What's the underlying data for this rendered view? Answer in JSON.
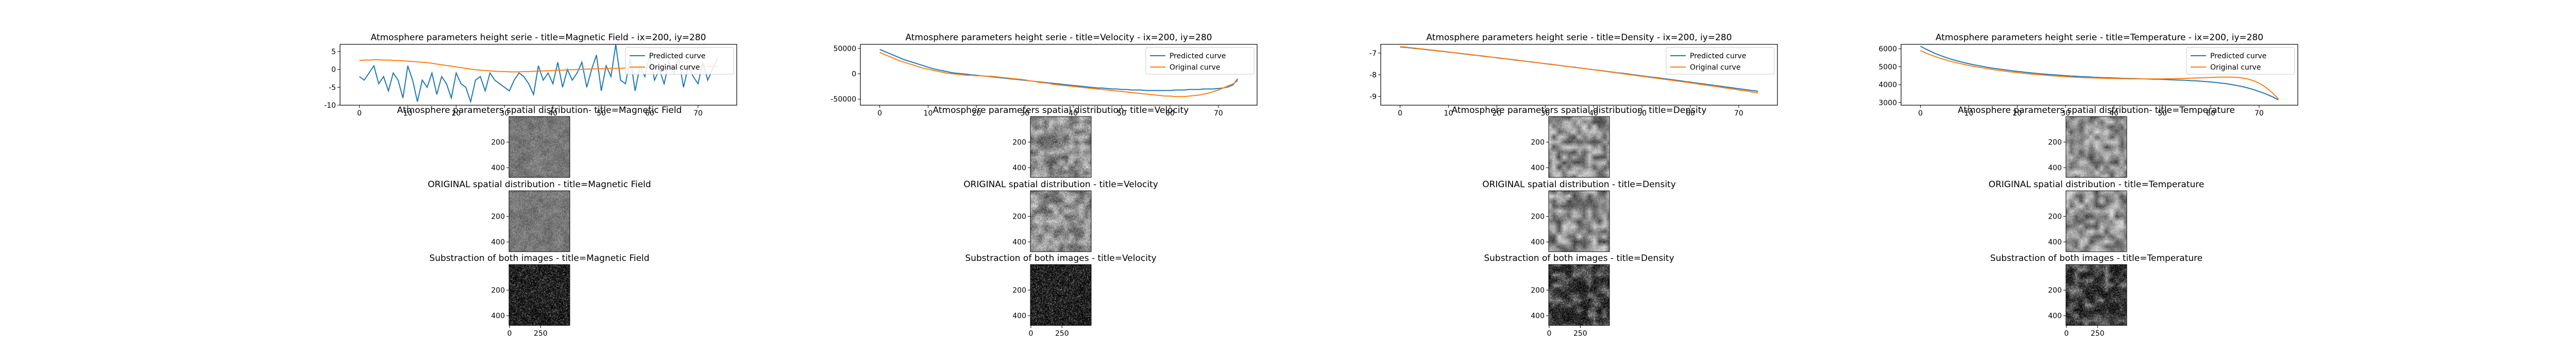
{
  "figure": {
    "background": "#ffffff"
  },
  "colors": {
    "predicted": "#1f77b4",
    "original": "#ff7f0e",
    "axis": "#000000"
  },
  "legend": {
    "predicted": "Predicted curve",
    "original": "Original curve",
    "placement": "top-right"
  },
  "chart_data": [
    {
      "type": "line",
      "title": "Atmosphere parameters height serie - title=Magnetic Field - ix=200, iy=280",
      "xlim": [
        -4,
        78
      ],
      "ylim": [
        -10,
        7
      ],
      "xticks": [
        0,
        10,
        20,
        30,
        40,
        50,
        60,
        70
      ],
      "yticks": [
        -10,
        -5,
        0,
        5
      ],
      "x_start": 0,
      "series": [
        {
          "name": "Predicted curve",
          "color": "#1f77b4",
          "values": [
            -2,
            -3,
            -1,
            1,
            -4,
            -2,
            -6,
            -1,
            -3,
            -8,
            1,
            -3,
            -9,
            -3,
            -5,
            -1,
            -7,
            -2,
            -4,
            -8,
            -1,
            -4,
            -5,
            -9,
            -3,
            -2,
            -6,
            -1,
            -3,
            -4,
            -5,
            -6,
            -3,
            -1,
            -2,
            -4,
            -7,
            1,
            -3,
            -1,
            -4,
            2,
            -5,
            0,
            -3,
            -1,
            2,
            -5,
            0,
            4,
            -6,
            1,
            -2,
            7,
            -3,
            -4,
            3,
            -6,
            1,
            -2,
            4,
            -3,
            0,
            -4,
            2,
            -1,
            3,
            -5,
            1,
            -2,
            -4,
            2,
            -3,
            0,
            3
          ]
        },
        {
          "name": "Original curve",
          "color": "#ff7f0e",
          "values": [
            2.5,
            2.6,
            2.6,
            2.7,
            2.7,
            2.6,
            2.6,
            2.5,
            2.5,
            2.4,
            2.3,
            2.2,
            2.1,
            2.0,
            1.9,
            1.7,
            1.5,
            1.3,
            1.1,
            0.9,
            0.7,
            0.5,
            0.3,
            0.1,
            -0.1,
            -0.2,
            -0.3,
            -0.4,
            -0.5,
            -0.6,
            -0.6,
            -0.7,
            -0.7,
            -0.7,
            -0.6,
            -0.6,
            -0.5,
            -0.5,
            -0.4,
            -0.4,
            -0.3,
            -0.2,
            -0.2,
            -0.1,
            -0.1,
            0.0,
            0.0,
            0.1,
            0.1,
            0.2,
            0.2,
            0.2,
            0.3,
            0.3,
            0.3,
            0.4,
            0.4,
            0.4,
            0.5,
            0.5,
            0.5,
            0.5,
            0.6,
            0.6,
            0.6,
            0.6,
            0.6,
            0.7,
            0.7,
            0.7,
            0.7,
            0.7,
            0.8,
            0.8,
            0.8
          ]
        }
      ]
    },
    {
      "type": "line",
      "title": "Atmosphere parameters height serie - title=Velocity - ix=200, iy=280",
      "xlim": [
        -4,
        78
      ],
      "ylim": [
        -62000,
        58000
      ],
      "xticks": [
        0,
        10,
        20,
        30,
        40,
        50,
        60,
        70
      ],
      "yticks": [
        -50000,
        0,
        50000
      ],
      "x_start": 0,
      "series": [
        {
          "name": "Predicted curve",
          "color": "#1f77b4",
          "values": [
            48000,
            44000,
            40000,
            36000,
            32000,
            28000,
            25000,
            22000,
            19000,
            16000,
            13000,
            10000,
            8000,
            6000,
            4000,
            2000,
            1000,
            0,
            -1000,
            -2000,
            -3000,
            -4000,
            -5000,
            -6000,
            -7000,
            -8000,
            -9000,
            -10000,
            -11000,
            -12000,
            -13000,
            -14000,
            -15000,
            -16000,
            -17000,
            -18000,
            -19000,
            -20000,
            -21000,
            -22000,
            -23000,
            -24000,
            -25000,
            -26000,
            -27000,
            -28000,
            -28000,
            -29000,
            -30000,
            -30000,
            -31000,
            -31000,
            -32000,
            -32000,
            -32000,
            -33000,
            -33000,
            -33000,
            -33000,
            -33000,
            -33000,
            -32000,
            -32000,
            -32000,
            -31000,
            -31000,
            -31000,
            -30000,
            -30000,
            -30000,
            -29000,
            -28000,
            -26000,
            -22000,
            -10000
          ]
        },
        {
          "name": "Original curve",
          "color": "#ff7f0e",
          "values": [
            42000,
            38000,
            34000,
            30000,
            26000,
            23000,
            20000,
            17000,
            14000,
            11000,
            9000,
            7000,
            5000,
            3000,
            1000,
            0,
            -1000,
            -2000,
            -3000,
            -3000,
            -4000,
            -4000,
            -5000,
            -5000,
            -6000,
            -7000,
            -8000,
            -9000,
            -10000,
            -11000,
            -12000,
            -14000,
            -15000,
            -17000,
            -18000,
            -19000,
            -21000,
            -22000,
            -23000,
            -24000,
            -25000,
            -26000,
            -27000,
            -28000,
            -29000,
            -30000,
            -31000,
            -32000,
            -33000,
            -34000,
            -35000,
            -36000,
            -37000,
            -38000,
            -39000,
            -40000,
            -41000,
            -42000,
            -43000,
            -44000,
            -44000,
            -45000,
            -45000,
            -45000,
            -44000,
            -43000,
            -42000,
            -40000,
            -38000,
            -35000,
            -32000,
            -28000,
            -24000,
            -20000,
            -14000
          ]
        }
      ]
    },
    {
      "type": "line",
      "title": "Atmosphere parameters height serie - title=Density - ix=200, iy=280",
      "xlim": [
        -4,
        78
      ],
      "ylim": [
        -9.4,
        -6.6
      ],
      "xticks": [
        0,
        10,
        20,
        30,
        40,
        50,
        60,
        70
      ],
      "yticks": [
        -9,
        -8,
        -7
      ],
      "x_start": 0,
      "series": [
        {
          "name": "Predicted curve",
          "color": "#1f77b4",
          "values": [
            -6.72,
            -6.74,
            -6.76,
            -6.79,
            -6.81,
            -6.83,
            -6.86,
            -6.88,
            -6.91,
            -6.93,
            -6.96,
            -6.98,
            -7.01,
            -7.04,
            -7.06,
            -7.09,
            -7.11,
            -7.14,
            -7.17,
            -7.19,
            -7.22,
            -7.25,
            -7.27,
            -7.3,
            -7.33,
            -7.35,
            -7.38,
            -7.41,
            -7.43,
            -7.46,
            -7.49,
            -7.52,
            -7.54,
            -7.57,
            -7.6,
            -7.63,
            -7.65,
            -7.68,
            -7.71,
            -7.74,
            -7.77,
            -7.79,
            -7.82,
            -7.85,
            -7.88,
            -7.91,
            -7.93,
            -7.96,
            -7.99,
            -8.02,
            -8.05,
            -8.08,
            -8.11,
            -8.13,
            -8.16,
            -8.19,
            -8.22,
            -8.25,
            -8.28,
            -8.31,
            -8.34,
            -8.37,
            -8.4,
            -8.43,
            -8.46,
            -8.49,
            -8.52,
            -8.55,
            -8.58,
            -8.61,
            -8.64,
            -8.67,
            -8.7,
            -8.73,
            -8.76
          ]
        },
        {
          "name": "Original curve",
          "color": "#ff7f0e",
          "values": [
            -6.7,
            -6.72,
            -6.75,
            -6.77,
            -6.8,
            -6.82,
            -6.85,
            -6.87,
            -6.9,
            -6.92,
            -6.95,
            -6.98,
            -7.0,
            -7.03,
            -7.05,
            -7.08,
            -7.11,
            -7.13,
            -7.16,
            -7.19,
            -7.21,
            -7.24,
            -7.27,
            -7.29,
            -7.32,
            -7.35,
            -7.38,
            -7.4,
            -7.43,
            -7.46,
            -7.49,
            -7.51,
            -7.54,
            -7.57,
            -7.6,
            -7.63,
            -7.66,
            -7.68,
            -7.71,
            -7.74,
            -7.77,
            -7.8,
            -7.83,
            -7.86,
            -7.89,
            -7.92,
            -7.95,
            -7.98,
            -8.01,
            -8.04,
            -8.07,
            -8.1,
            -8.13,
            -8.16,
            -8.19,
            -8.22,
            -8.25,
            -8.28,
            -8.31,
            -8.34,
            -8.37,
            -8.4,
            -8.44,
            -8.47,
            -8.5,
            -8.53,
            -8.56,
            -8.6,
            -8.63,
            -8.66,
            -8.7,
            -8.73,
            -8.76,
            -8.8,
            -8.83
          ]
        }
      ]
    },
    {
      "type": "line",
      "title": "Atmosphere parameters height serie - title=Temperature - ix=200, iy=280",
      "xlim": [
        -4,
        78
      ],
      "ylim": [
        2850,
        6250
      ],
      "xticks": [
        0,
        10,
        20,
        30,
        40,
        50,
        60,
        70
      ],
      "yticks": [
        3000,
        4000,
        5000,
        6000
      ],
      "x_start": 0,
      "series": [
        {
          "name": "Predicted curve",
          "color": "#1f77b4",
          "values": [
            6150,
            6000,
            5870,
            5750,
            5640,
            5540,
            5450,
            5370,
            5300,
            5230,
            5170,
            5110,
            5060,
            5010,
            4960,
            4920,
            4880,
            4840,
            4810,
            4770,
            4740,
            4710,
            4680,
            4650,
            4630,
            4600,
            4580,
            4560,
            4540,
            4520,
            4500,
            4480,
            4470,
            4450,
            4440,
            4430,
            4410,
            4400,
            4390,
            4380,
            4370,
            4360,
            4350,
            4340,
            4340,
            4330,
            4320,
            4310,
            4300,
            4300,
            4290,
            4280,
            4270,
            4260,
            4250,
            4240,
            4220,
            4210,
            4190,
            4170,
            4150,
            4120,
            4090,
            4060,
            4020,
            3970,
            3920,
            3860,
            3790,
            3710,
            3620,
            3520,
            3410,
            3290,
            3150
          ]
        },
        {
          "name": "Original curve",
          "color": "#ff7f0e",
          "values": [
            5900,
            5780,
            5670,
            5570,
            5480,
            5400,
            5320,
            5250,
            5190,
            5130,
            5070,
            5020,
            4970,
            4930,
            4880,
            4840,
            4800,
            4770,
            4730,
            4700,
            4670,
            4640,
            4610,
            4590,
            4560,
            4540,
            4520,
            4500,
            4480,
            4460,
            4440,
            4430,
            4410,
            4400,
            4390,
            4380,
            4370,
            4360,
            4350,
            4340,
            4340,
            4330,
            4330,
            4320,
            4320,
            4320,
            4320,
            4320,
            4320,
            4320,
            4320,
            4330,
            4330,
            4340,
            4340,
            4350,
            4360,
            4370,
            4380,
            4390,
            4400,
            4410,
            4420,
            4420,
            4420,
            4410,
            4390,
            4350,
            4290,
            4200,
            4080,
            3920,
            3720,
            3480,
            3200
          ]
        }
      ]
    }
  ],
  "images": [
    {
      "kind": "predicted",
      "title": "Atmosphere parameters spatial distribution- title=Magnetic Field",
      "yticks": [
        "200",
        "400"
      ],
      "tone": "mid",
      "seed": 11
    },
    {
      "kind": "original",
      "title": "ORIGINAL spatial distribution - title=Magnetic Field",
      "yticks": [
        "200",
        "400"
      ],
      "tone": "mid",
      "seed": 12
    },
    {
      "kind": "diff",
      "title": "Substraction of both images - title=Magnetic Field",
      "yticks": [
        "200",
        "400"
      ],
      "xticks": [
        "0",
        "250"
      ],
      "tone": "dark",
      "seed": 13
    },
    {
      "kind": "predicted",
      "title": "Atmosphere parameters spatial distribution- title=Velocity",
      "yticks": [
        "200",
        "400"
      ],
      "tone": "cells",
      "seed": 21
    },
    {
      "kind": "original",
      "title": "ORIGINAL spatial distribution - title=Velocity",
      "yticks": [
        "200",
        "400"
      ],
      "tone": "cells",
      "seed": 22
    },
    {
      "kind": "diff",
      "title": "Substraction of both images - title=Velocity",
      "yticks": [
        "200",
        "400"
      ],
      "xticks": [
        "0",
        "250"
      ],
      "tone": "dark",
      "seed": 23
    },
    {
      "kind": "predicted",
      "title": "Atmosphere parameters spatial distribution- title=Density",
      "yticks": [
        "200",
        "400"
      ],
      "tone": "bright",
      "seed": 31
    },
    {
      "kind": "original",
      "title": "ORIGINAL spatial distribution - title=Density",
      "yticks": [
        "200",
        "400"
      ],
      "tone": "bright",
      "seed": 32
    },
    {
      "kind": "diff",
      "title": "Substraction of both images - title=Density",
      "yticks": [
        "200",
        "400"
      ],
      "xticks": [
        "0",
        "250"
      ],
      "tone": "darkbright",
      "seed": 33
    },
    {
      "kind": "predicted",
      "title": "Atmosphere parameters spatial distribution- title=Temperature",
      "yticks": [
        "200",
        "400"
      ],
      "tone": "bright",
      "seed": 41
    },
    {
      "kind": "original",
      "title": "ORIGINAL spatial distribution - title=Temperature",
      "yticks": [
        "200",
        "400"
      ],
      "tone": "bright",
      "seed": 42
    },
    {
      "kind": "diff",
      "title": "Substraction of both images - title=Temperature",
      "yticks": [
        "200",
        "400"
      ],
      "xticks": [
        "0",
        "250"
      ],
      "tone": "darkbright",
      "seed": 43
    }
  ]
}
